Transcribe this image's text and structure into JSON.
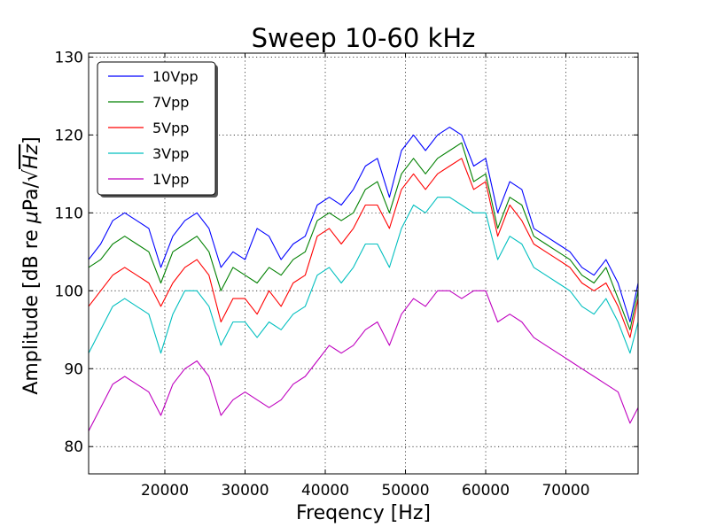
{
  "chart_data": {
    "type": "line",
    "title": "Sweep 10-60 kHz",
    "xlabel": "Freqency [Hz]",
    "ylabel_prefix": "Amplitude [dB re ",
    "ylabel_mu": "μ",
    "ylabel_unit": "Pa/",
    "ylabel_sqrt": "√",
    "ylabel_hz": "Hz",
    "ylabel_suffix": "]",
    "xlim": [
      10500,
      79000
    ],
    "ylim": [
      76.5,
      130.5
    ],
    "xticks": [
      20000,
      30000,
      40000,
      50000,
      60000,
      70000
    ],
    "xtick_labels": [
      "20000",
      "30000",
      "40000",
      "50000",
      "60000",
      "70000"
    ],
    "yticks": [
      80,
      90,
      100,
      110,
      120,
      130
    ],
    "ytick_labels": [
      "80",
      "90",
      "100",
      "110",
      "120",
      "130"
    ],
    "grid": true,
    "legend_position": "upper-left",
    "x": [
      10500,
      12000,
      13500,
      15000,
      16500,
      18000,
      19500,
      21000,
      22500,
      24000,
      25500,
      27000,
      28500,
      30000,
      31500,
      33000,
      34500,
      36000,
      37500,
      39000,
      40500,
      42000,
      43500,
      45000,
      46500,
      48000,
      49500,
      51000,
      52500,
      54000,
      55500,
      57000,
      58500,
      60000,
      61500,
      63000,
      64500,
      66000,
      67500,
      69000,
      70500,
      72000,
      73500,
      75000,
      76500,
      78000,
      79000
    ],
    "series": [
      {
        "name": "10Vpp",
        "color": "#0000ff",
        "values": [
          104,
          106,
          109,
          110,
          109,
          108,
          103,
          107,
          109,
          110,
          108,
          103,
          105,
          104,
          108,
          107,
          104,
          106,
          107,
          111,
          112,
          111,
          113,
          116,
          117,
          112,
          118,
          120,
          118,
          120,
          121,
          120,
          116,
          117,
          110,
          114,
          113,
          108,
          107,
          106,
          105,
          103,
          102,
          104,
          101,
          96,
          101
        ]
      },
      {
        "name": "7Vpp",
        "color": "#008000",
        "values": [
          103,
          104,
          106,
          107,
          106,
          105,
          101,
          105,
          106,
          107,
          105,
          100,
          103,
          102,
          101,
          103,
          102,
          104,
          105,
          109,
          110,
          109,
          110,
          113,
          114,
          110,
          115,
          117,
          115,
          117,
          118,
          119,
          114,
          115,
          108,
          112,
          111,
          107,
          106,
          105,
          104,
          102,
          101,
          103,
          99,
          95,
          100
        ]
      },
      {
        "name": "5Vpp",
        "color": "#ff0000",
        "values": [
          98,
          100,
          102,
          103,
          102,
          101,
          98,
          101,
          103,
          104,
          102,
          96,
          99,
          99,
          97,
          100,
          98,
          101,
          102,
          107,
          108,
          106,
          108,
          111,
          111,
          108,
          113,
          115,
          113,
          115,
          116,
          117,
          113,
          114,
          107,
          111,
          109,
          106,
          105,
          104,
          103,
          101,
          100,
          101,
          98,
          94,
          99
        ]
      },
      {
        "name": "3Vpp",
        "color": "#00bfbf",
        "values": [
          92,
          95,
          98,
          99,
          98,
          97,
          92,
          97,
          100,
          100,
          98,
          93,
          96,
          96,
          94,
          96,
          95,
          97,
          98,
          102,
          103,
          101,
          103,
          106,
          106,
          103,
          108,
          111,
          110,
          112,
          112,
          111,
          110,
          110,
          104,
          107,
          106,
          103,
          102,
          101,
          100,
          98,
          97,
          99,
          96,
          92,
          96
        ]
      },
      {
        "name": "1Vpp",
        "color": "#bf00bf",
        "values": [
          82,
          85,
          88,
          89,
          88,
          87,
          84,
          88,
          90,
          91,
          89,
          84,
          86,
          87,
          86,
          85,
          86,
          88,
          89,
          91,
          93,
          92,
          93,
          95,
          96,
          93,
          97,
          99,
          98,
          100,
          100,
          99,
          100,
          100,
          96,
          97,
          96,
          94,
          93,
          92,
          91,
          90,
          89,
          88,
          87,
          83,
          85
        ]
      }
    ]
  }
}
